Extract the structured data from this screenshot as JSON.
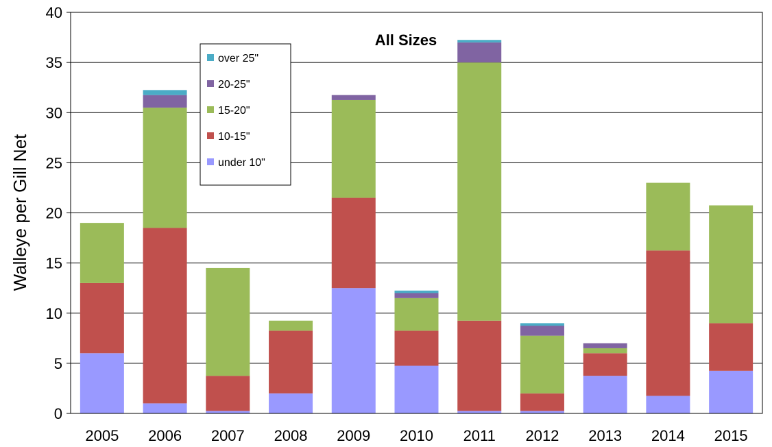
{
  "chart_data": {
    "type": "bar",
    "stacked": true,
    "title": "All Sizes",
    "xlabel": "",
    "ylabel": "Walleye per Gill Net",
    "ylim": [
      0,
      40
    ],
    "yticks": [
      0,
      5,
      10,
      15,
      20,
      25,
      30,
      35,
      40
    ],
    "grid": "horizontal",
    "legend_position": "upper-left",
    "categories": [
      "2005",
      "2006",
      "2007",
      "2008",
      "2009",
      "2010",
      "2011",
      "2012",
      "2013",
      "2014",
      "2015"
    ],
    "series": [
      {
        "name": "under 10\"",
        "color": "#9999ff",
        "values": [
          6.0,
          1.0,
          0.25,
          2.0,
          12.5,
          4.75,
          0.25,
          0.25,
          3.75,
          1.75,
          4.25
        ]
      },
      {
        "name": "10-15\"",
        "color": "#c0504d",
        "values": [
          7.0,
          17.5,
          3.5,
          6.25,
          9.0,
          3.5,
          9.0,
          1.75,
          2.25,
          14.5,
          4.75
        ]
      },
      {
        "name": "15-20\"",
        "color": "#9bbb59",
        "values": [
          6.0,
          12.0,
          10.75,
          1.0,
          9.75,
          3.25,
          25.75,
          5.75,
          0.5,
          6.75,
          11.75
        ]
      },
      {
        "name": "20-25\"",
        "color": "#8064a2",
        "values": [
          0,
          1.25,
          0,
          0,
          0.5,
          0.5,
          2.0,
          1.0,
          0.5,
          0,
          0
        ]
      },
      {
        "name": "over 25\"",
        "color": "#4bacc6",
        "values": [
          0,
          0.5,
          0,
          0,
          0,
          0.25,
          0.25,
          0.25,
          0,
          0,
          0
        ]
      }
    ]
  }
}
